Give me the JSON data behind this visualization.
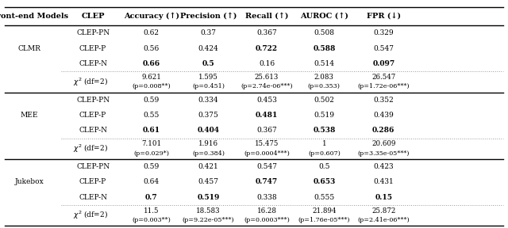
{
  "col_headers": [
    "Front-end Models",
    "CLEP",
    "Accuracy (↑)",
    "Precision (↑)",
    "Recall (↑)",
    "AUROC (↑)",
    "FPR (↓)"
  ],
  "sections": [
    {
      "model": "CLMR",
      "rows": [
        {
          "clep": "CLEP-PN",
          "accuracy": "0.62",
          "precision": "0.37",
          "recall": "0.367",
          "auroc": "0.508",
          "fpr": "0.329",
          "bold": []
        },
        {
          "clep": "CLEP-P",
          "accuracy": "0.56",
          "precision": "0.424",
          "recall": "0.722",
          "auroc": "0.588",
          "fpr": "0.547",
          "bold": [
            "recall",
            "auroc"
          ]
        },
        {
          "clep": "CLEP-N",
          "accuracy": "0.66",
          "precision": "0.5",
          "recall": "0.16",
          "auroc": "0.514",
          "fpr": "0.097",
          "bold": [
            "accuracy",
            "precision",
            "fpr"
          ]
        }
      ],
      "chi2_row1": [
        "9.621",
        "1.595",
        "25.613",
        "2.083",
        "26.547"
      ],
      "chi2_row2": [
        "(p=0.008**)",
        "(p=0.451)",
        "(p=2.74e-06***)",
        "(p=0.353)",
        "(p=1.72e-06***)"
      ]
    },
    {
      "model": "MEE",
      "rows": [
        {
          "clep": "CLEP-PN",
          "accuracy": "0.59",
          "precision": "0.334",
          "recall": "0.453",
          "auroc": "0.502",
          "fpr": "0.352",
          "bold": []
        },
        {
          "clep": "CLEP-P",
          "accuracy": "0.55",
          "precision": "0.375",
          "recall": "0.481",
          "auroc": "0.519",
          "fpr": "0.439",
          "bold": [
            "recall"
          ]
        },
        {
          "clep": "CLEP-N",
          "accuracy": "0.61",
          "precision": "0.404",
          "recall": "0.367",
          "auroc": "0.538",
          "fpr": "0.286",
          "bold": [
            "accuracy",
            "precision",
            "auroc",
            "fpr"
          ]
        }
      ],
      "chi2_row1": [
        "7.101",
        "1.916",
        "15.475",
        "1",
        "20.609"
      ],
      "chi2_row2": [
        "(p=0.029*)",
        "(p=0.384)",
        "(p=0.0004***)",
        "(p=0.607)",
        "(p=3.35e-05***)"
      ]
    },
    {
      "model": "Jukebox",
      "rows": [
        {
          "clep": "CLEP-PN",
          "accuracy": "0.59",
          "precision": "0.421",
          "recall": "0.547",
          "auroc": "0.5",
          "fpr": "0.423",
          "bold": []
        },
        {
          "clep": "CLEP-P",
          "accuracy": "0.64",
          "precision": "0.457",
          "recall": "0.747",
          "auroc": "0.653",
          "fpr": "0.431",
          "bold": [
            "recall",
            "auroc"
          ]
        },
        {
          "clep": "CLEP-N",
          "accuracy": "0.7",
          "precision": "0.519",
          "recall": "0.338",
          "auroc": "0.555",
          "fpr": "0.15",
          "bold": [
            "accuracy",
            "precision",
            "fpr"
          ]
        }
      ],
      "chi2_row1": [
        "11.5",
        "18.583",
        "16.28",
        "21.894",
        "25.872"
      ],
      "chi2_row2": [
        "(p=0.003**)",
        "(p=9.22e-05***)",
        "(p=0.0003***)",
        "(p=1.76e-05***)",
        "(p=2.41e-06***)"
      ]
    }
  ],
  "background_color": "#ffffff"
}
